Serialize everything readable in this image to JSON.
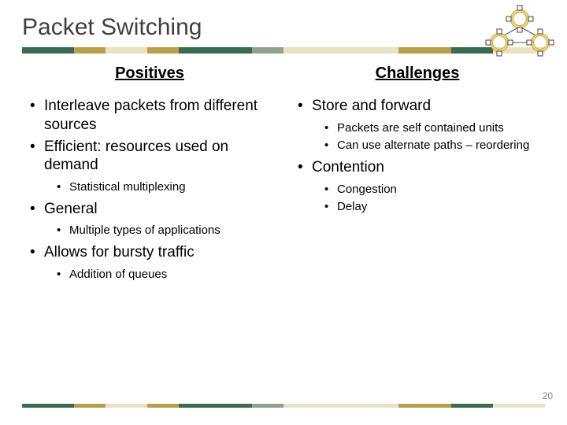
{
  "title": "Packet Switching",
  "page_number": "20",
  "stripe_colors": [
    {
      "c": "#3a6a52",
      "w": 10
    },
    {
      "c": "#b6a14a",
      "w": 6
    },
    {
      "c": "#e8e2c4",
      "w": 8
    },
    {
      "c": "#b6a14a",
      "w": 6
    },
    {
      "c": "#3a6a52",
      "w": 14
    },
    {
      "c": "#90a28e",
      "w": 6
    },
    {
      "c": "#e8e2c4",
      "w": 22
    },
    {
      "c": "#b6a14a",
      "w": 10
    },
    {
      "c": "#3a6a52",
      "w": 8
    },
    {
      "c": "#e8e2c4",
      "w": 10
    }
  ],
  "left": {
    "heading": "Positives",
    "items": [
      {
        "text": "Interleave packets from different sources"
      },
      {
        "text": "Efficient: resources used on demand",
        "sub": [
          {
            "text": "Statistical multiplexing"
          }
        ]
      },
      {
        "text": "General",
        "sub": [
          {
            "text": "Multiple types of applications"
          }
        ]
      },
      {
        "text": "Allows for bursty traffic",
        "sub": [
          {
            "text": "Addition of queues"
          }
        ]
      }
    ]
  },
  "right": {
    "heading": "Challenges",
    "items": [
      {
        "text": "Store and forward",
        "sub": [
          {
            "text": "Packets are self contained units"
          },
          {
            "text": "Can use alternate paths – reordering"
          }
        ]
      },
      {
        "text": "Contention",
        "sub": [
          {
            "text": "Congestion"
          },
          {
            "text": "Delay"
          }
        ]
      }
    ]
  },
  "net_icon": {
    "ring_fill": "#f0d87a",
    "ring_stroke": "#c8a030",
    "node_fill": "#ffffff",
    "node_stroke": "#444444",
    "link_stroke": "#555555"
  }
}
